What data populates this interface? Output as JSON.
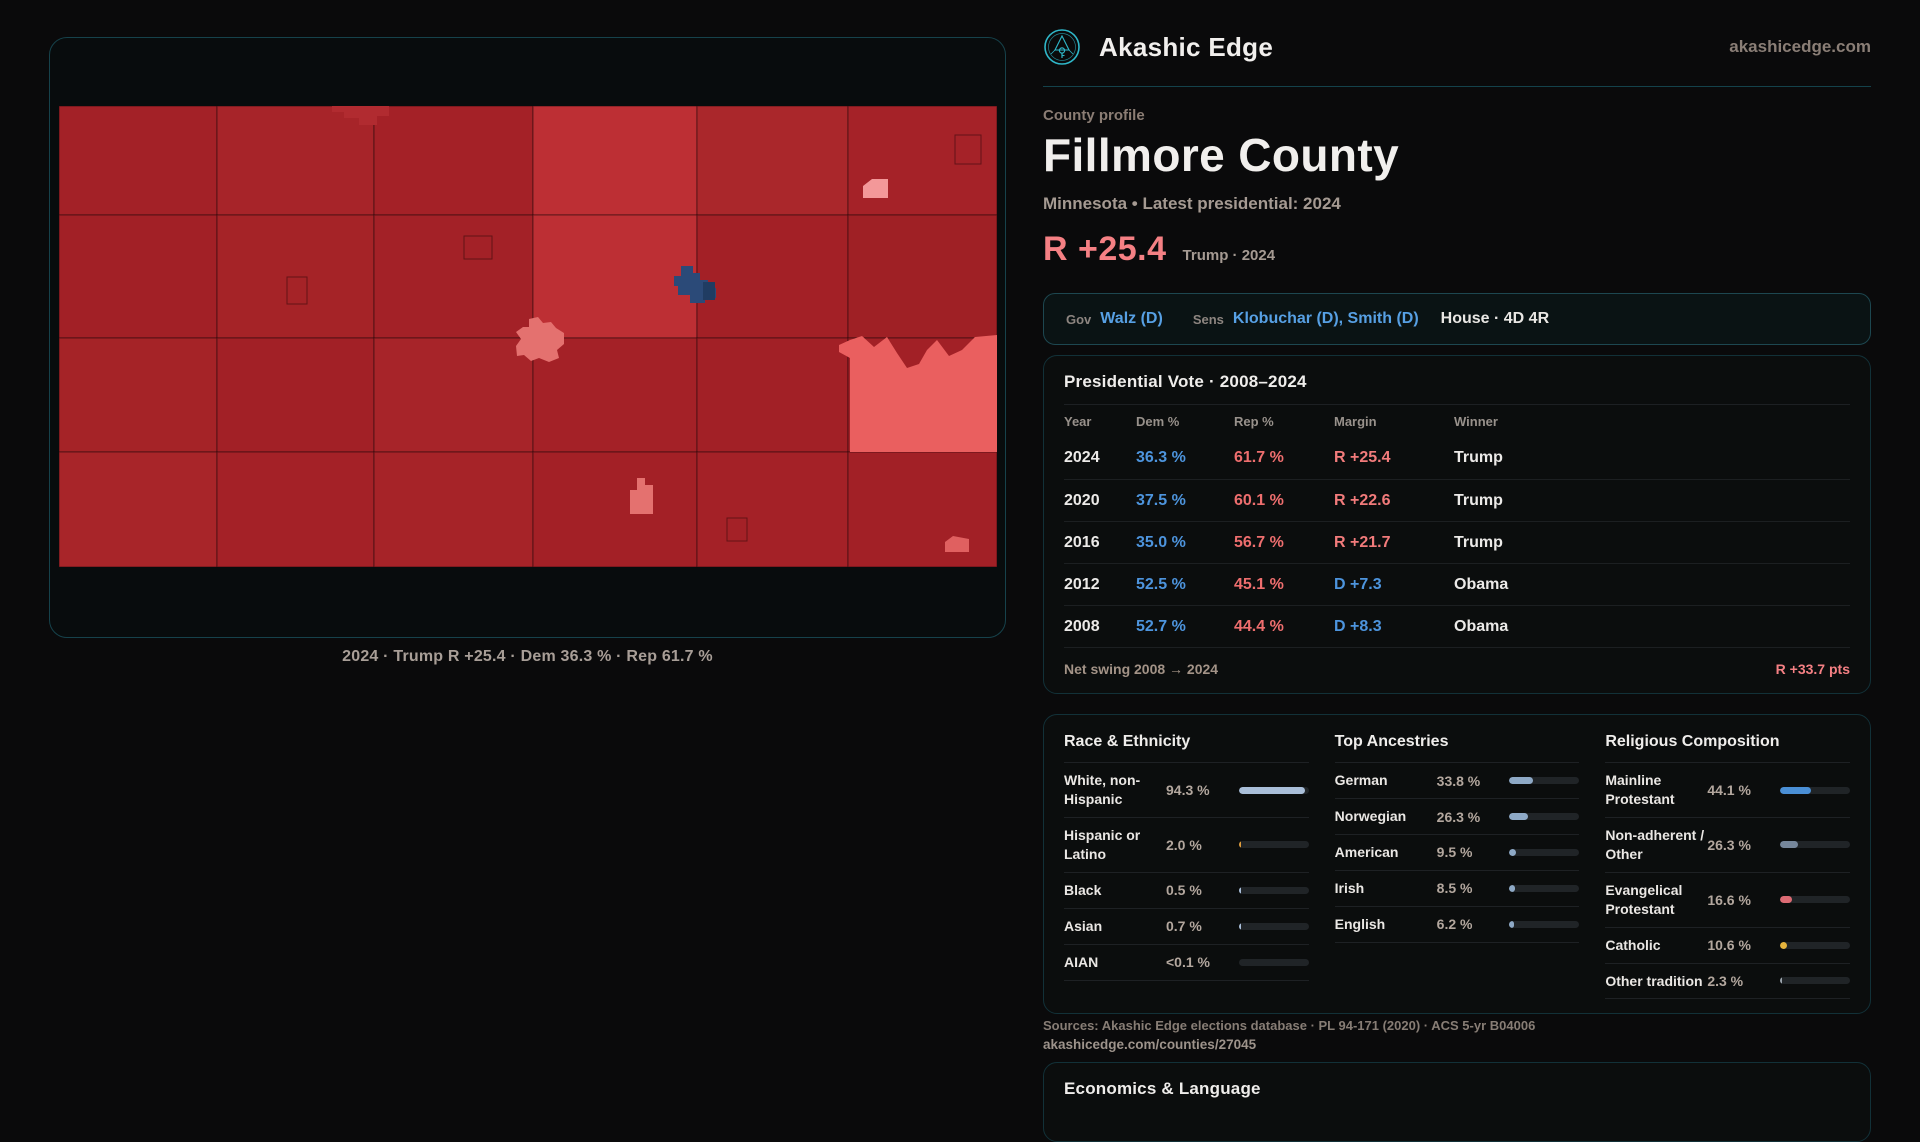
{
  "brand": {
    "name": "Akashic Edge",
    "domain": "akashicedge.com"
  },
  "profile": {
    "kicker": "County profile",
    "title": "Fillmore County",
    "subtitle": "Minnesota • Latest presidential: 2024",
    "margin": "R +25.4",
    "margin_context": "Trump · 2024"
  },
  "officials": {
    "gov_label": "Gov",
    "gov": "Walz (D)",
    "sens_label": "Sens",
    "sens": "Klobuchar (D), Smith (D)",
    "house": "House · 4D 4R"
  },
  "map": {
    "caption": "2024 · Trump R +25.4 · Dem 36.3 % · Rep 61.7 %"
  },
  "presidential": {
    "title": "Presidential Vote · 2008–2024",
    "columns": [
      "Year",
      "Dem %",
      "Rep %",
      "Margin",
      "Winner"
    ],
    "rows": [
      {
        "year": "2024",
        "dem": "36.3 %",
        "rep": "61.7 %",
        "margin": "R +25.4",
        "margin_party": "R",
        "winner": "Trump"
      },
      {
        "year": "2020",
        "dem": "37.5 %",
        "rep": "60.1 %",
        "margin": "R +22.6",
        "margin_party": "R",
        "winner": "Trump"
      },
      {
        "year": "2016",
        "dem": "35.0 %",
        "rep": "56.7 %",
        "margin": "R +21.7",
        "margin_party": "R",
        "winner": "Trump"
      },
      {
        "year": "2012",
        "dem": "52.5 %",
        "rep": "45.1 %",
        "margin": "D +7.3",
        "margin_party": "D",
        "winner": "Obama"
      },
      {
        "year": "2008",
        "dem": "52.7 %",
        "rep": "44.4 %",
        "margin": "D +8.3",
        "margin_party": "D",
        "winner": "Obama"
      }
    ],
    "net_swing_label": "Net swing 2008 → 2024",
    "net_swing_value": "R +33.7 pts"
  },
  "demographics": {
    "race": {
      "title": "Race & Ethnicity",
      "rows": [
        {
          "label": "White, non-Hispanic",
          "value": "94.3 %",
          "pct": 94.3,
          "color": "#a9bed8"
        },
        {
          "label": "Hispanic or Latino",
          "value": "2.0 %",
          "pct": 2.0,
          "color": "#dd9b3c"
        },
        {
          "label": "Black",
          "value": "0.5 %",
          "pct": 0.5,
          "color": "#a9bed8"
        },
        {
          "label": "Asian",
          "value": "0.7 %",
          "pct": 0.7,
          "color": "#a9bed8"
        },
        {
          "label": "AIAN",
          "value": "<0.1 %",
          "pct": 0,
          "color": "#a9bed8"
        }
      ]
    },
    "ancestries": {
      "title": "Top Ancestries",
      "rows": [
        {
          "label": "German",
          "value": "33.8 %",
          "pct": 33.8,
          "color": "#8ea9c6"
        },
        {
          "label": "Norwegian",
          "value": "26.3 %",
          "pct": 26.3,
          "color": "#8ea9c6"
        },
        {
          "label": "American",
          "value": "9.5 %",
          "pct": 9.5,
          "color": "#8ea9c6"
        },
        {
          "label": "Irish",
          "value": "8.5 %",
          "pct": 8.5,
          "color": "#8ea9c6"
        },
        {
          "label": "English",
          "value": "6.2 %",
          "pct": 6.2,
          "color": "#8ea9c6"
        }
      ]
    },
    "religion": {
      "title": "Religious Composition",
      "rows": [
        {
          "label": "Mainline Protestant",
          "value": "44.1 %",
          "pct": 44.1,
          "color": "#4a8fd6"
        },
        {
          "label": "Non-adherent / Other",
          "value": "26.3 %",
          "pct": 26.3,
          "color": "#76879b"
        },
        {
          "label": "Evangelical Protestant",
          "value": "16.6 %",
          "pct": 16.6,
          "color": "#dd6b74"
        },
        {
          "label": "Catholic",
          "value": "10.6 %",
          "pct": 10.6,
          "color": "#e5b33c"
        },
        {
          "label": "Other tradition",
          "value": "2.3 %",
          "pct": 2.3,
          "color": "#9aa3ab"
        }
      ]
    }
  },
  "sources": {
    "line1": "Sources: Akashic Edge elections database · PL 94-171 (2020) · ACS 5-yr B04006",
    "line2": "akashicedge.com/counties/27045"
  },
  "economics": {
    "title": "Economics & Language"
  },
  "palette": {
    "accent_teal": "#2fb7c9",
    "dem_blue": "#4d94dd",
    "rep_red": "#ee6e6e",
    "margin_salmon": "#f58084",
    "map_dark_red": "#a32127",
    "map_medium_red": "#bd2f34",
    "map_bright_salmon": "#ea5f5f",
    "map_pink": "#f39899",
    "map_dem_blue_city": "#2b4a78"
  }
}
